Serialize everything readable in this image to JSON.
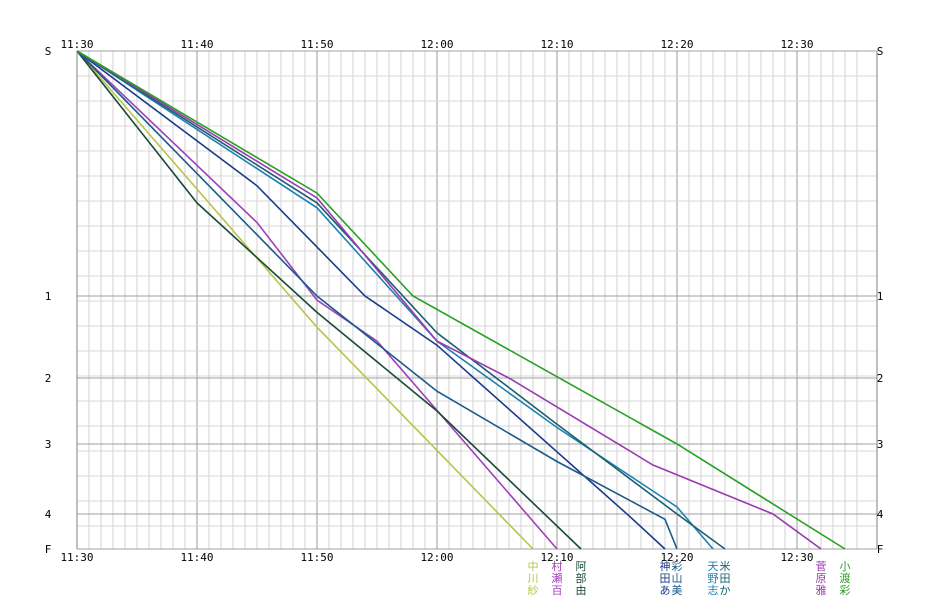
{
  "chart_data": {
    "type": "line",
    "title": "",
    "xlabel": "",
    "ylabel": "",
    "x_unit": "time",
    "xlim": [
      "11:30",
      "12:35"
    ],
    "x_ticks": [
      "11:30",
      "11:40",
      "11:50",
      "12:00",
      "12:10",
      "12:20",
      "12:30"
    ],
    "y_ticks": [
      "S",
      "1",
      "2",
      "3",
      "4",
      "F"
    ],
    "y_positions": [
      0,
      1,
      2,
      3,
      4,
      5
    ],
    "grid": true,
    "legend": "bottom (runner names as vertical labels at finish)",
    "series": [
      {
        "name": "中川紗",
        "color": "#b9c44a",
        "points": [
          [
            "11:30",
            0
          ],
          [
            "11:50",
            1.38
          ],
          [
            "12:08",
            5
          ]
        ]
      },
      {
        "name": "村瀬百",
        "color": "#a040b8",
        "points": [
          [
            "11:30",
            0
          ],
          [
            "11:45",
            0.7
          ],
          [
            "11:50",
            1.05
          ],
          [
            "11:55",
            1.55
          ],
          [
            "12:10",
            5
          ]
        ]
      },
      {
        "name": "阿部由",
        "color": "#1a4a3a",
        "points": [
          [
            "11:30",
            0
          ],
          [
            "11:40",
            0.62
          ],
          [
            "11:50",
            1.2
          ],
          [
            "12:00",
            2.5
          ],
          [
            "12:12",
            5
          ]
        ]
      },
      {
        "name": "神田あ",
        "color": "#1a3a8a",
        "points": [
          [
            "11:30",
            0
          ],
          [
            "11:45",
            0.55
          ],
          [
            "11:54",
            1.0
          ],
          [
            "12:00",
            1.6
          ],
          [
            "12:16",
            4.05
          ],
          [
            "12:19",
            5
          ]
        ]
      },
      {
        "name": "彩山美",
        "color": "#1a5a8a",
        "points": [
          [
            "11:30",
            0
          ],
          [
            "11:50",
            1.0
          ],
          [
            "12:00",
            2.2
          ],
          [
            "12:10",
            3.25
          ],
          [
            "12:19",
            4.15
          ],
          [
            "12:20",
            5
          ]
        ]
      },
      {
        "name": "天野志",
        "color": "#2080b0",
        "points": [
          [
            "11:30",
            0
          ],
          [
            "11:50",
            0.64
          ],
          [
            "12:00",
            1.55
          ],
          [
            "12:10",
            2.75
          ],
          [
            "12:20",
            3.9
          ],
          [
            "12:23",
            5
          ]
        ]
      },
      {
        "name": "米田か",
        "color": "#1a6070",
        "points": [
          [
            "11:30",
            0
          ],
          [
            "11:50",
            0.62
          ],
          [
            "12:00",
            1.45
          ],
          [
            "12:10",
            2.7
          ],
          [
            "12:20",
            4.0
          ],
          [
            "12:24",
            5
          ]
        ]
      },
      {
        "name": "菅原雅",
        "color": "#9a3ab0",
        "points": [
          [
            "11:30",
            0
          ],
          [
            "11:50",
            0.6
          ],
          [
            "12:00",
            1.55
          ],
          [
            "12:06",
            2.0
          ],
          [
            "12:18",
            3.3
          ],
          [
            "12:28",
            4.0
          ],
          [
            "12:32",
            5
          ]
        ]
      },
      {
        "name": "小渡彩",
        "color": "#2aa020",
        "points": [
          [
            "11:30",
            0
          ],
          [
            "11:50",
            0.58
          ],
          [
            "11:58",
            1.0
          ],
          [
            "12:20",
            3.0
          ],
          [
            "12:34",
            5
          ]
        ]
      }
    ]
  }
}
